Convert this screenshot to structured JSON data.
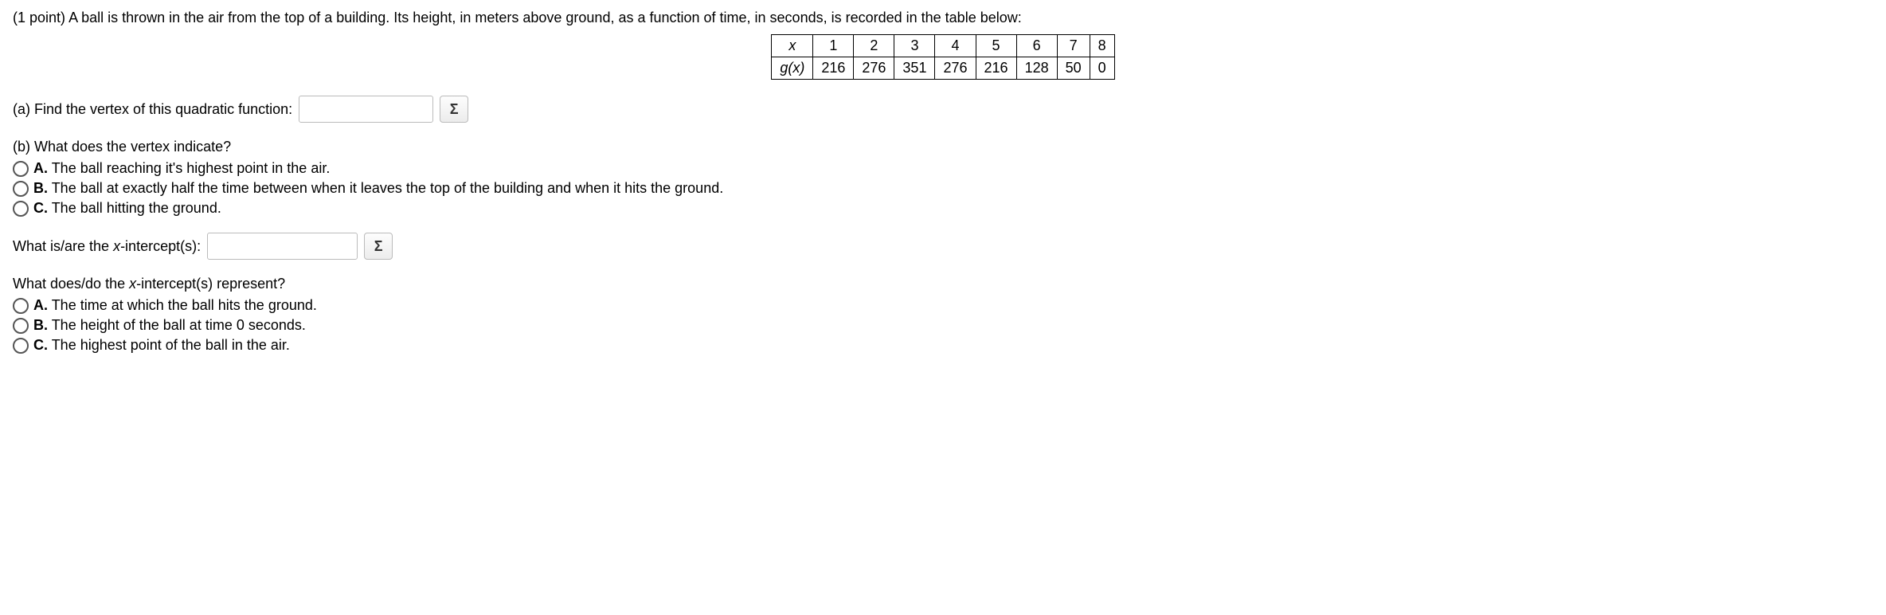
{
  "header": {
    "points": "(1 point)",
    "prompt": "A ball is thrown in the air from the top of a building. Its height, in meters above ground, as a function of time, in seconds, is recorded in the table below:"
  },
  "table": {
    "row1_label": "x",
    "row2_label": "g(x)",
    "x_values": [
      "1",
      "2",
      "3",
      "4",
      "5",
      "6",
      "7",
      "8"
    ],
    "g_values": [
      "216",
      "276",
      "351",
      "276",
      "216",
      "128",
      "50",
      "0"
    ]
  },
  "partA": {
    "label": "(a) Find the vertex of this quadratic function:",
    "sigma": "Σ"
  },
  "partB": {
    "label": "(b) What does the vertex indicate?",
    "options": [
      {
        "letter": "A.",
        "text": "The ball reaching it's highest point in the air."
      },
      {
        "letter": "B.",
        "text": "The ball at exactly half the time between when it leaves the top of the building and when it hits the ground."
      },
      {
        "letter": "C.",
        "text": "The ball hitting the ground."
      }
    ]
  },
  "xint": {
    "label": "What is/are the ",
    "label_var": "x",
    "label_tail": "-intercept(s):",
    "sigma": "Σ"
  },
  "xint_meaning": {
    "label_pre": "What does/do the ",
    "label_var": "x",
    "label_post": "-intercept(s) represent?",
    "options": [
      {
        "letter": "A.",
        "text": "The time at which the ball hits the ground."
      },
      {
        "letter": "B.",
        "text": "The height of the ball at time 0 seconds."
      },
      {
        "letter": "C.",
        "text": "The highest point of the ball in the air."
      }
    ]
  }
}
